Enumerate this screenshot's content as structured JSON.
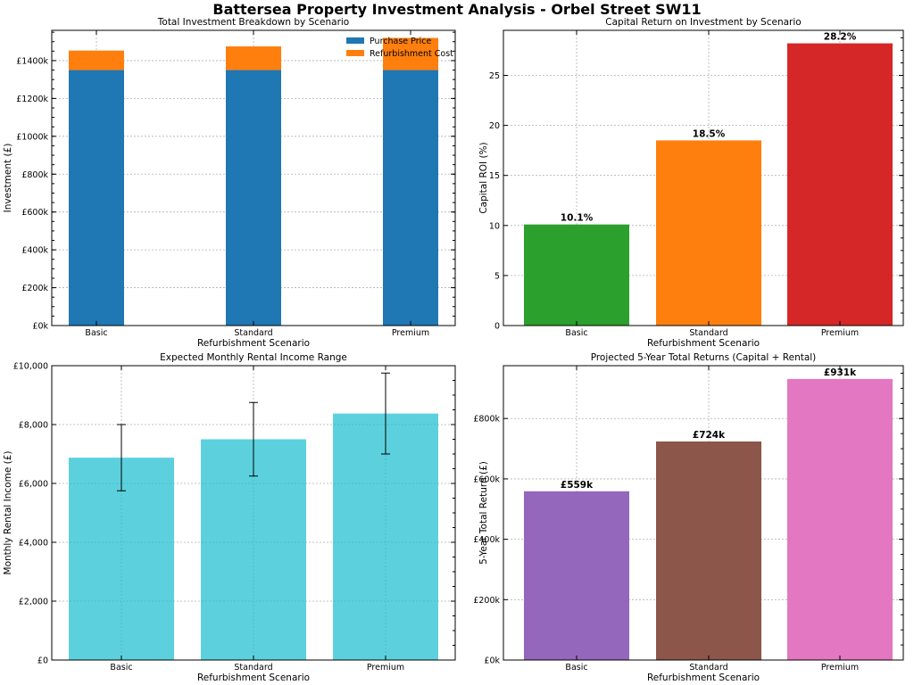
{
  "figure": {
    "suptitle": "Battersea Property Investment Analysis - Orbel Street SW11"
  },
  "chart_data": [
    {
      "type": "bar",
      "stacked": true,
      "title": "Total Investment Breakdown by Scenario",
      "xlabel": "Refurbishment Scenario",
      "ylabel": "Investment (£)",
      "categories": [
        "Basic",
        "Standard",
        "Premium"
      ],
      "series": [
        {
          "name": "Purchase Price",
          "color": "#1f77b4",
          "values": [
            1350000,
            1350000,
            1350000
          ]
        },
        {
          "name": "Refurbishment Cost",
          "color": "#ff7f0e",
          "values": [
            103000,
            125000,
            170000
          ]
        }
      ],
      "ylim": [
        0,
        1560000
      ],
      "yticks": [
        0,
        200000,
        400000,
        600000,
        800000,
        1000000,
        1200000,
        1400000
      ],
      "ytick_labels": [
        "£0k",
        "£200k",
        "£400k",
        "£600k",
        "£800k",
        "£1000k",
        "£1200k",
        "£1400k"
      ],
      "legend_position": "top-right",
      "grid": true
    },
    {
      "type": "bar",
      "title": "Capital Return on Investment by Scenario",
      "xlabel": "Refurbishment Scenario",
      "ylabel": "Capital ROI (%)",
      "categories": [
        "Basic",
        "Standard",
        "Premium"
      ],
      "values": [
        10.1,
        18.5,
        28.2
      ],
      "colors": [
        "#2ca02c",
        "#ff7f0e",
        "#d62728"
      ],
      "data_labels": [
        "10.1%",
        "18.5%",
        "28.2%"
      ],
      "ylim": [
        0,
        29.5
      ],
      "yticks": [
        0,
        5,
        10,
        15,
        20,
        25
      ],
      "ytick_labels": [
        "0",
        "5",
        "10",
        "15",
        "20",
        "25"
      ],
      "grid": true
    },
    {
      "type": "bar",
      "title": "Expected Monthly Rental Income Range",
      "xlabel": "Refurbishment Scenario",
      "ylabel": "Monthly Rental Income (£)",
      "categories": [
        "Basic",
        "Standard",
        "Premium"
      ],
      "values": [
        6875,
        7500,
        8375
      ],
      "error_low": [
        5750,
        6250,
        7000
      ],
      "error_high": [
        8000,
        8750,
        9750
      ],
      "colors": [
        "#17becf",
        "#17becf",
        "#17becf"
      ],
      "ylim": [
        0,
        10000
      ],
      "yticks": [
        0,
        2000,
        4000,
        6000,
        8000,
        10000
      ],
      "ytick_labels": [
        "£0",
        "£2,000",
        "£4,000",
        "£6,000",
        "£8,000",
        "£10,000"
      ],
      "grid": true
    },
    {
      "type": "bar",
      "title": "Projected 5-Year Total Returns (Capital + Rental)",
      "xlabel": "Refurbishment Scenario",
      "ylabel": "5-Year Total Return (£)",
      "categories": [
        "Basic",
        "Standard",
        "Premium"
      ],
      "values": [
        559000,
        724000,
        931000
      ],
      "colors": [
        "#9467bd",
        "#8c564b",
        "#e377c2"
      ],
      "data_labels": [
        "£559k",
        "£724k",
        "£931k"
      ],
      "ylim": [
        0,
        975000
      ],
      "yticks": [
        0,
        200000,
        400000,
        600000,
        800000
      ],
      "ytick_labels": [
        "£0k",
        "£200k",
        "£400k",
        "£600k",
        "£800k"
      ],
      "grid": true
    }
  ]
}
